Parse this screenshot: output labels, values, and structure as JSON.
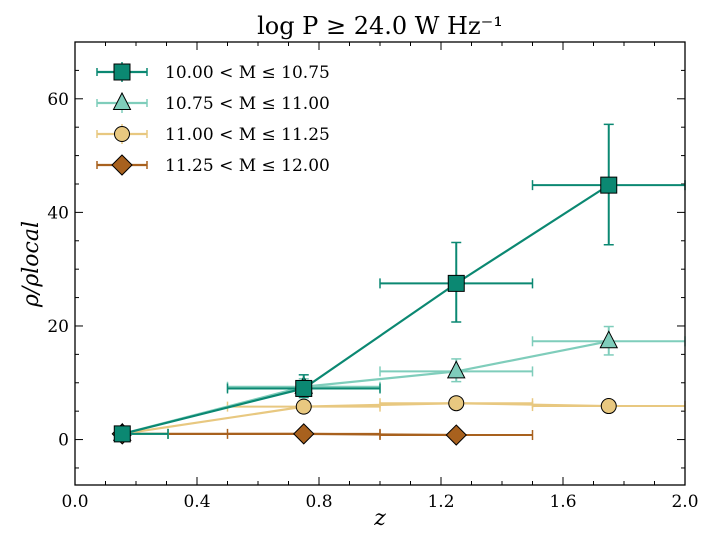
{
  "chart_data": {
    "type": "line",
    "title": "log P ≥ 24.0 W Hz⁻¹",
    "xlabel": "z",
    "ylabel": "ρ/ρlocal",
    "xlim": [
      0.0,
      2.0
    ],
    "ylim": [
      -8,
      70
    ],
    "xticks": [
      0.0,
      0.4,
      0.8,
      1.2,
      1.6,
      2.0
    ],
    "xtick_labels": [
      "0.0",
      "0.4",
      "0.8",
      "1.2",
      "1.6",
      "2.0"
    ],
    "yticks": [
      0,
      20,
      40,
      60
    ],
    "ytick_labels": [
      "0",
      "20",
      "40",
      "60"
    ],
    "grid": false,
    "legend_position": "top-left",
    "series": [
      {
        "name": "10.00 < M ≤ 10.75",
        "color": "#0b8872",
        "marker": "square",
        "points": [
          {
            "x": 0.155,
            "y": 1.0,
            "xerr": [
              0.0,
              0.15
            ],
            "yerr": [
              0.4,
              0.4
            ]
          },
          {
            "x": 0.75,
            "y": 9.0,
            "xerr": [
              0.25,
              0.25
            ],
            "yerr": [
              1.6,
              2.4
            ]
          },
          {
            "x": 1.25,
            "y": 27.5,
            "xerr": [
              0.25,
              0.25
            ],
            "yerr": [
              6.8,
              7.2
            ]
          },
          {
            "x": 1.75,
            "y": 44.8,
            "xerr": [
              0.25,
              0.25
            ],
            "yerr": [
              10.5,
              10.7
            ]
          }
        ]
      },
      {
        "name": "10.75 < M ≤ 11.00",
        "color": "#7fcdbb",
        "marker": "triangle",
        "points": [
          {
            "x": 0.155,
            "y": 1.0,
            "xerr": [
              0.0,
              0.15
            ],
            "yerr": [
              0.3,
              0.3
            ]
          },
          {
            "x": 0.75,
            "y": 9.3,
            "xerr": [
              0.25,
              0.25
            ],
            "yerr": [
              1.2,
              1.4
            ]
          },
          {
            "x": 1.25,
            "y": 12.0,
            "xerr": [
              0.25,
              0.25
            ],
            "yerr": [
              1.8,
              2.2
            ]
          },
          {
            "x": 1.75,
            "y": 17.3,
            "xerr": [
              0.25,
              0.25
            ],
            "yerr": [
              2.4,
              2.6
            ]
          }
        ]
      },
      {
        "name": "11.00 < M ≤ 11.25",
        "color": "#e8c880",
        "marker": "circle",
        "points": [
          {
            "x": 0.155,
            "y": 1.0,
            "xerr": [
              0.0,
              0.15
            ],
            "yerr": [
              0.2,
              0.2
            ]
          },
          {
            "x": 0.75,
            "y": 5.8,
            "xerr": [
              0.25,
              0.25
            ],
            "yerr": [
              0.5,
              0.5
            ]
          },
          {
            "x": 1.25,
            "y": 6.4,
            "xerr": [
              0.25,
              0.25
            ],
            "yerr": [
              0.6,
              0.6
            ]
          },
          {
            "x": 1.75,
            "y": 5.9,
            "xerr": [
              0.25,
              0.25
            ],
            "yerr": [
              0.5,
              0.5
            ]
          }
        ]
      },
      {
        "name": "11.25 < M ≤ 12.00",
        "color": "#a8611e",
        "marker": "diamond",
        "points": [
          {
            "x": 0.155,
            "y": 1.0,
            "xerr": [
              0.0,
              0.15
            ],
            "yerr": [
              0.2,
              0.2
            ]
          },
          {
            "x": 0.75,
            "y": 1.0,
            "xerr": [
              0.25,
              0.25
            ],
            "yerr": [
              0.2,
              0.2
            ]
          },
          {
            "x": 1.25,
            "y": 0.8,
            "xerr": [
              0.25,
              0.25
            ],
            "yerr": [
              0.2,
              0.2
            ]
          }
        ]
      }
    ]
  }
}
